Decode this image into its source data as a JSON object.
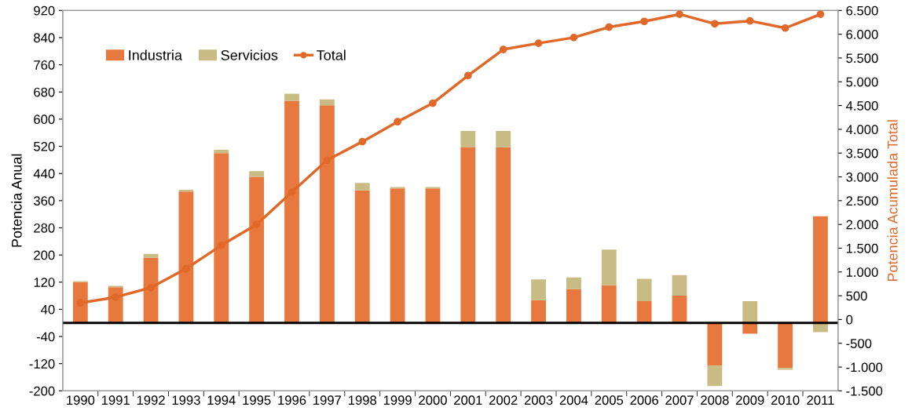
{
  "chart_data": {
    "type": "bar",
    "stacked": true,
    "ylabel": "Potencia Anual",
    "y2label": "Potencia Acumulada Total",
    "categories": [
      "1990",
      "1991",
      "1992",
      "1993",
      "1994",
      "1995",
      "1996",
      "1997",
      "1998",
      "1999",
      "2000",
      "2001",
      "2002",
      "2003",
      "2004",
      "2005",
      "2006",
      "2007",
      "2008",
      "2009",
      "2010",
      "2011"
    ],
    "series": [
      {
        "name": "Industria",
        "color": "#e8793e",
        "values": [
          120,
          105,
          192,
          387,
          500,
          430,
          654,
          641,
          390,
          396,
          396,
          518,
          517,
          67,
          100,
          111,
          64,
          80,
          -126,
          -32,
          -133,
          314
        ]
      },
      {
        "name": "Servicios",
        "color": "#c8bc84",
        "values": [
          3,
          4,
          11,
          5,
          10,
          17,
          21,
          17,
          22,
          4,
          4,
          47,
          48,
          61,
          34,
          105,
          66,
          61,
          -60,
          64,
          -5,
          -27
        ]
      },
      {
        "name": "Total",
        "type": "line",
        "axis": "y2",
        "color": "#e0692a",
        "marker": "circle",
        "values": [
          350,
          470,
          670,
          1070,
          1560,
          2000,
          2680,
          3350,
          3740,
          4160,
          4550,
          5130,
          5680,
          5810,
          5930,
          6150,
          6270,
          6420,
          6220,
          6280,
          6130,
          6420
        ]
      }
    ],
    "ylim": [
      -200,
      920
    ],
    "yticks": [
      -200,
      -120,
      -40,
      40,
      120,
      200,
      280,
      360,
      440,
      520,
      600,
      680,
      760,
      840,
      920
    ],
    "y2lim": [
      -1500,
      6500
    ],
    "y2ticks": [
      {
        "value": -1500,
        "label": "-1.500"
      },
      {
        "value": -1000,
        "label": "-1.000"
      },
      {
        "value": -500,
        "label": "-500"
      },
      0,
      500,
      {
        "value": 1000,
        "label": "1.000"
      },
      {
        "value": 1500,
        "label": "1.500"
      },
      {
        "value": 2000,
        "label": "2.000"
      },
      {
        "value": 2500,
        "label": "2.500"
      },
      {
        "value": 3000,
        "label": "3.000"
      },
      {
        "value": 3500,
        "label": "3.500"
      },
      {
        "value": 4000,
        "label": "4.000"
      },
      {
        "value": 4500,
        "label": "4.500"
      },
      {
        "value": 5000,
        "label": "5.000"
      },
      {
        "value": 5500,
        "label": "5.500"
      },
      {
        "value": 6000,
        "label": "6.000"
      },
      {
        "value": 6500,
        "label": "6.500"
      }
    ],
    "legend": "top left",
    "grid": false
  }
}
